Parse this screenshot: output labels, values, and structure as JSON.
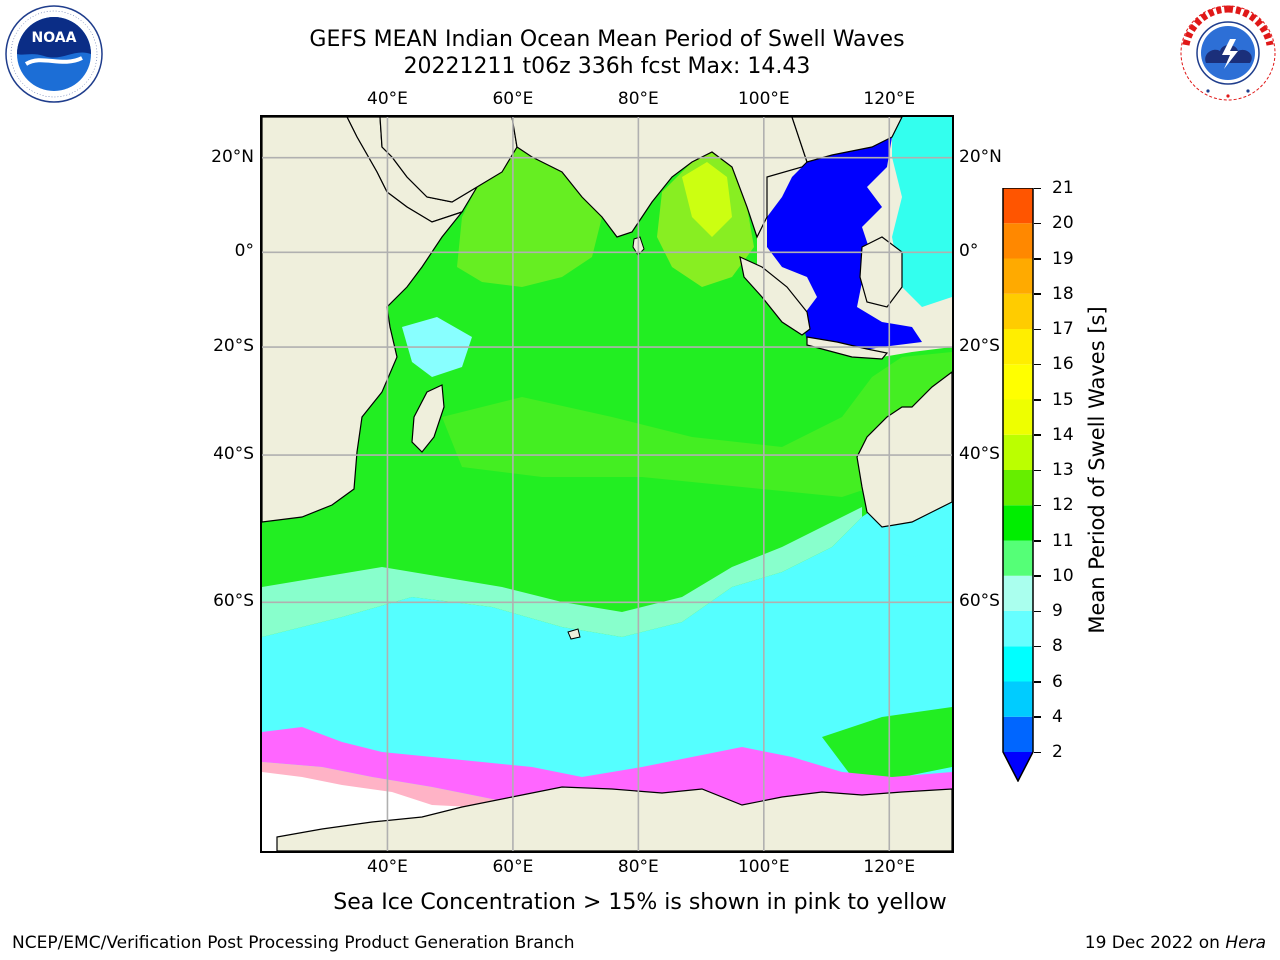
{
  "header": {
    "title_line1": "GEFS MEAN Indian Ocean Mean Period of Swell Waves",
    "title_line2": "20221211 t06z 336h fcst   Max: 14.43"
  },
  "logos": {
    "left": {
      "name": "noaa-logo",
      "text": "NOAA",
      "ring_text": "NATIONAL OCEANIC AND ATMOSPHERIC ADMINISTRATION · U.S. DEPARTMENT OF COMMERCE"
    },
    "right": {
      "name": "nws-logo",
      "ring_text": "NATIONAL WEATHER SERVICE"
    }
  },
  "map": {
    "top_lon_labels": [
      "40°E",
      "60°E",
      "80°E",
      "100°E",
      "120°E"
    ],
    "bottom_lon_labels": [
      "40°E",
      "60°E",
      "80°E",
      "100°E",
      "120°E"
    ],
    "left_lat_labels": [
      "20°N",
      "0°",
      "20°S",
      "40°S",
      "60°S"
    ],
    "right_lat_labels": [
      "20°N",
      "0°",
      "20°S",
      "40°S",
      "60°S"
    ],
    "lon_ticks": [
      40,
      60,
      80,
      100,
      120
    ],
    "lat_ticks": [
      20,
      0,
      -20,
      -40,
      -60
    ],
    "lon_range": [
      20,
      130
    ],
    "lat_range": [
      -78,
      28
    ],
    "projection": "mercator",
    "grid": true,
    "land_color": "#efefdc",
    "ice_colors": [
      "#ff66ff",
      "#ffb3c6",
      "#ffe08a"
    ],
    "region_labels": []
  },
  "colorbar": {
    "title": "Mean Period of Swell Waves [s]",
    "tick_labels": [
      "21",
      "20",
      "19",
      "18",
      "17",
      "16",
      "15",
      "14",
      "13",
      "12",
      "11",
      "10",
      "9",
      "8",
      "6",
      "4",
      "2"
    ],
    "levels": [
      2,
      4,
      6,
      8,
      9,
      10,
      11,
      12,
      13,
      14,
      15,
      16,
      17,
      18,
      19,
      20,
      21
    ],
    "colors": [
      "#0066ff",
      "#00ccff",
      "#00ffff",
      "#66ffff",
      "#aaffee",
      "#55ff77",
      "#00ee00",
      "#66ee00",
      "#bbff00",
      "#eeff00",
      "#ffff00",
      "#ffee00",
      "#ffcc00",
      "#ffaa00",
      "#ff8800",
      "#ff5500",
      "#ff2200",
      "#ff0000"
    ],
    "under_color": "#0000ff"
  },
  "note": "Sea Ice Concentration > 15% is shown in pink to yellow",
  "footer": {
    "left": "NCEP/EMC/Verification Post Processing Product Generation Branch",
    "right_prefix": "19 Dec 2022 on ",
    "right_host": "Hera"
  }
}
